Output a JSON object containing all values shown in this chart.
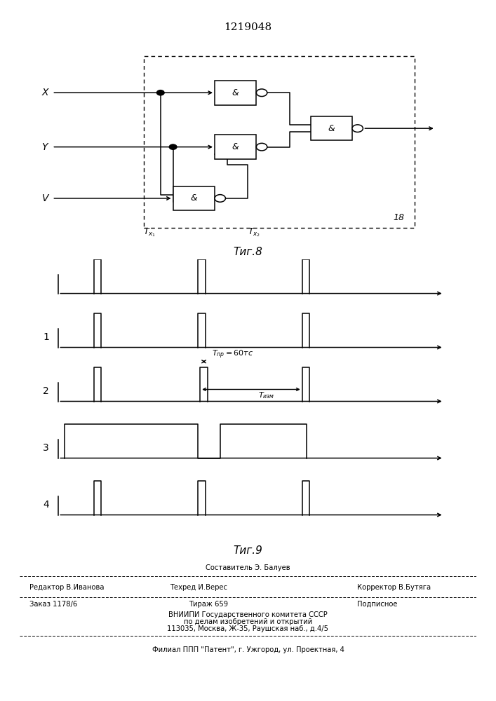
{
  "title_text": "1219048",
  "bg_color": "#ffffff",
  "line_color": "#000000",
  "footer": {
    "sostavitel": "Составитель Э. Балуев",
    "redaktor": "Редактор В.Иванова",
    "tekhred": "Техред И.Верес",
    "korrektor": "Корректор В.Бутяга",
    "zakaz": "Заказ 1178/6",
    "tirazh": "Тираж 659",
    "podpisnoe": "Подписное",
    "vniiipi": "ВНИИПИ Государственного комитета СССР",
    "po_delam": "по делам изобретений и открытий",
    "address": "113035, Москва, Ж-35, Раушская наб., д.4/5",
    "filial": "Филиал ППП \"Патент\", г. Ужгород, ул. Проектная, 4"
  }
}
